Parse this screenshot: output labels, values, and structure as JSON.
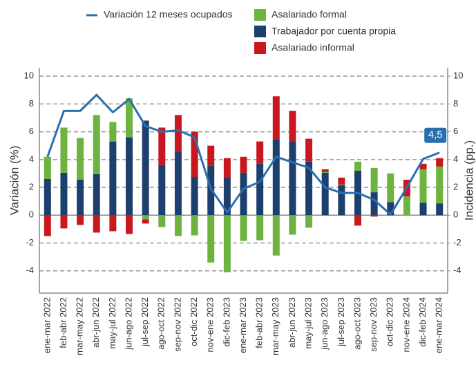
{
  "chart_data": {
    "type": "bar",
    "categories": [
      "ene-mar 2022",
      "feb-abr 2022",
      "mar-may 2022",
      "abr-jun 2022",
      "may-jul 2022",
      "jun-ago 2022",
      "jul-sep 2022",
      "ago-oct 2022",
      "sep-nov 2022",
      "oct-dic 2022",
      "nov-ene 2023",
      "dic-feb 2023",
      "ene-mar 2023",
      "feb-abr 2023",
      "mar-may 2023",
      "abr-jun 2023",
      "may-jul 2023",
      "jun-ago 2023",
      "jul-sep 2023",
      "ago-oct 2023",
      "sep-nov 2023",
      "oct-dic 2023",
      "nov-ene 2024",
      "dic-feb 2024",
      "ene-mar 2024"
    ],
    "series": [
      {
        "name": "Variación 12 meses ocupados",
        "type": "line",
        "color": "#2a6eb0",
        "values": [
          4.2,
          7.5,
          7.5,
          8.65,
          7.4,
          8.35,
          6.4,
          6.0,
          6.1,
          5.6,
          1.9,
          0.2,
          1.9,
          2.4,
          4.2,
          3.8,
          3.4,
          2.0,
          1.6,
          1.6,
          1.1,
          0.05,
          2.0,
          4.05,
          4.5
        ]
      },
      {
        "name": "Asalariado formal",
        "type": "bar",
        "color": "#6db33f",
        "values": [
          1.6,
          3.25,
          3.0,
          4.25,
          1.4,
          2.8,
          -0.3,
          -0.85,
          -1.5,
          -1.45,
          -3.4,
          -4.1,
          -1.85,
          -1.8,
          -2.9,
          -1.4,
          -0.9,
          0.05,
          0.05,
          0.65,
          1.75,
          2.05,
          1.35,
          2.4,
          2.65
        ]
      },
      {
        "name": "Trabajador por cuenta propia",
        "type": "bar",
        "color": "#1d3f6e",
        "values": [
          2.6,
          3.05,
          2.55,
          2.95,
          5.3,
          5.6,
          6.8,
          3.6,
          4.6,
          2.75,
          3.55,
          2.7,
          3.05,
          3.7,
          5.45,
          5.3,
          3.85,
          3.05,
          2.15,
          3.2,
          1.65,
          0.95,
          0,
          0.9,
          0.85
        ]
      },
      {
        "name": "Asalariado informal",
        "type": "bar",
        "color": "#c8171e",
        "values": [
          -1.5,
          -0.95,
          -0.7,
          -1.25,
          -1.15,
          -1.35,
          -0.3,
          2.7,
          2.6,
          3.25,
          1.45,
          1.4,
          1.15,
          1.6,
          3.1,
          2.2,
          1.65,
          0.2,
          0.5,
          -0.75,
          -0.1,
          0,
          1.2,
          0.4,
          0.6
        ]
      }
    ],
    "y_label": "Variación (%)",
    "y2_label": "Incidencia (pp.)",
    "ylim": [
      -5.6,
      10.6
    ],
    "yticks": [
      -4,
      -2,
      0,
      2,
      4,
      6,
      8,
      10
    ],
    "y2lim": [
      -5.6,
      10.6
    ],
    "y2ticks": [
      -4,
      -2,
      0,
      2,
      4,
      6,
      8,
      10
    ],
    "annotation": "4,5",
    "grid": true
  }
}
